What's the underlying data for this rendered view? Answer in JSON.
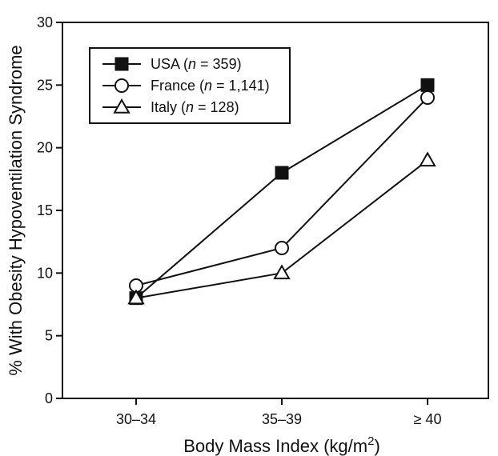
{
  "chart_data": {
    "type": "line",
    "title": "",
    "xlabel": "Body Mass Index (kg/m",
    "xlabel_sup": "2",
    "xlabel_close": ")",
    "ylabel": "% With Obesity Hypoventilation Syndrome",
    "categories": [
      "30–34",
      "35–39",
      "≥ 40"
    ],
    "ylim": [
      0,
      30
    ],
    "yticks": [
      "0",
      "5",
      "10",
      "15",
      "20",
      "25",
      "30"
    ],
    "grid": false,
    "legend_position": "top-left",
    "series": [
      {
        "name": "USA",
        "n_label": "n",
        "n_value": " = 359)",
        "marker": "filled-square",
        "color": "#111111",
        "values": [
          8,
          18,
          25
        ]
      },
      {
        "name": "France",
        "n_label": "n",
        "n_value": " = 1,141)",
        "marker": "open-circle",
        "color": "#111111",
        "values": [
          9,
          12,
          24
        ]
      },
      {
        "name": "Italy",
        "n_label": "n",
        "n_value": " = 128)",
        "marker": "open-triangle",
        "color": "#111111",
        "values": [
          8,
          10,
          19
        ]
      }
    ]
  }
}
